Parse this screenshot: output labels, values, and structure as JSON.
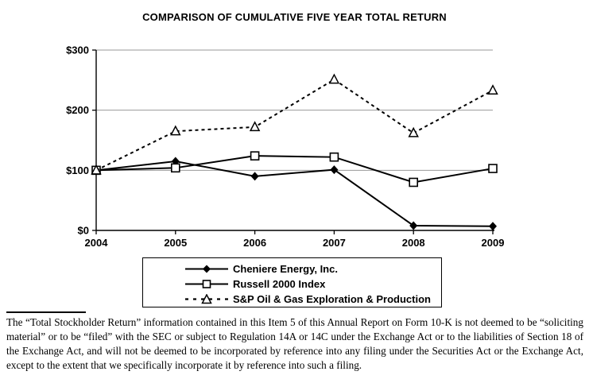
{
  "chart_data": {
    "type": "line",
    "title": "COMPARISON OF CUMULATIVE FIVE YEAR TOTAL RETURN",
    "categories": [
      "2004",
      "2005",
      "2006",
      "2007",
      "2008",
      "2009"
    ],
    "series": [
      {
        "name": "Cheniere Energy, Inc.",
        "values": [
          100,
          115,
          90,
          101,
          8,
          7
        ],
        "line": "solid",
        "marker": "diamond",
        "marker_fill": "filled",
        "color": "#000000"
      },
      {
        "name": "Russell 2000 Index",
        "values": [
          100,
          104,
          124,
          122,
          80,
          103
        ],
        "line": "solid",
        "marker": "square",
        "marker_fill": "open",
        "color": "#000000"
      },
      {
        "name": "S&P Oil & Gas Exploration & Production",
        "values": [
          100,
          165,
          172,
          251,
          162,
          233
        ],
        "line": "dashed",
        "marker": "triangle",
        "marker_fill": "open",
        "color": "#000000"
      }
    ],
    "xlabel": "",
    "ylabel": "",
    "ylim": [
      0,
      300
    ],
    "ytick_interval": 100,
    "ytick_labels": [
      "$0",
      "$100",
      "$200",
      "$300"
    ],
    "grid": "horizontal",
    "grid_color": "#999999",
    "axis_color": "#000000",
    "legend_position": "bottom-center-boxed"
  },
  "footnote": {
    "text": "The “Total Stockholder Return” information contained in this Item 5 of this Annual Report on Form 10-K is not deemed to be “soliciting material” or to be “filed” with the SEC or subject to Regulation 14A or 14C under the Exchange Act or to the liabilities of Section 18 of the Exchange Act, and will not be deemed to be incorporated by reference into any filing under the Securities Act or the Exchange Act, except to the extent that we specifically incorporate it by reference into such a filing."
  }
}
